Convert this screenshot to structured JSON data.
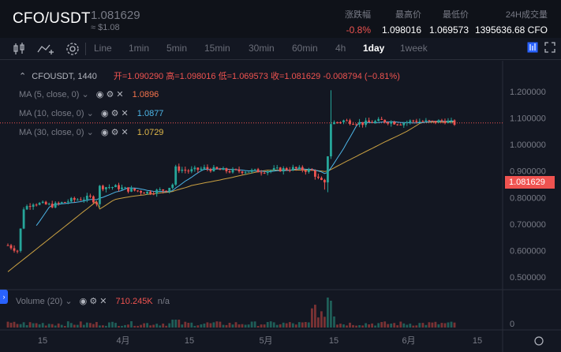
{
  "header": {
    "pair": "CFO/USDT",
    "price": "1.081629",
    "price_usd": "≈ $1.08",
    "stats": [
      {
        "label": "涨跌幅",
        "value": "-0.8%",
        "color": "red"
      },
      {
        "label": "最高价",
        "value": "1.098016",
        "color": "white"
      },
      {
        "label": "最低价",
        "value": "1.069573",
        "color": "white"
      },
      {
        "label": "24H成交量",
        "value": "1395636.68 CFO",
        "color": "white"
      }
    ]
  },
  "toolbar": {
    "timeframes": [
      "Line",
      "1min",
      "5min",
      "15min",
      "30min",
      "60min",
      "4h",
      "1day",
      "1week"
    ],
    "active_timeframe": "1day"
  },
  "legend": {
    "symbol": "CFOUSDT, 1440",
    "ohlc": "开=1.090290 高=1.098016 低=1.069573 收=1.081629 -0.008794 (−0.81%)",
    "ma5": {
      "label": "MA (5, close, 0)",
      "value": "1.0896",
      "color": "#f4734c"
    },
    "ma10": {
      "label": "MA (10, close, 0)",
      "value": "1.0877",
      "color": "#4db6e8"
    },
    "ma30": {
      "label": "MA (30, close, 0)",
      "value": "1.0729",
      "color": "#e0b84a"
    },
    "volume": {
      "label": "Volume (20)",
      "value": "710.245K",
      "extra": "n/a"
    }
  },
  "colors": {
    "up": "#26a69a",
    "down": "#ef5350",
    "ma10": "#4db6e8",
    "ma30": "#c9a042",
    "price_line": "#ef5350"
  },
  "price_axis": [
    "1.200000",
    "1.100000",
    "1.000000",
    "0.900000",
    "0.800000",
    "0.700000",
    "0.600000",
    "0.500000"
  ],
  "current_price_tag": "1.081629",
  "volume_axis_zero": "0",
  "time_axis": [
    "15",
    "4月",
    "15",
    "5月",
    "15",
    "6月",
    "15"
  ]
}
